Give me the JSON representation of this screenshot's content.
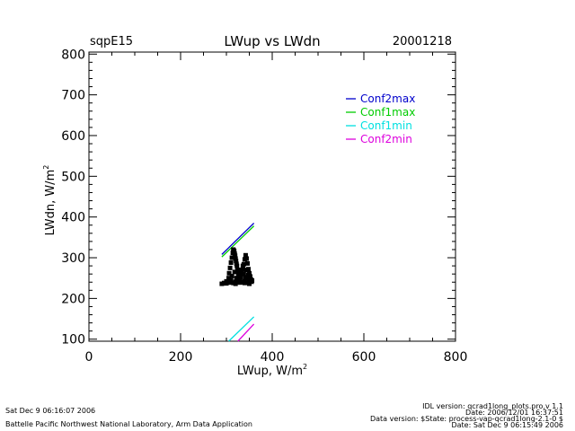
{
  "header": {
    "site": "sqpE15",
    "title": "LWup vs LWdn",
    "date": "20001218"
  },
  "footer": {
    "left_line1": "Sat Dec  9 06:16:07 2006",
    "left_line2": "Battelle Pacific Northwest National Laboratory, Arm Data Application",
    "right_line1": "IDL version: qcrad1long_plots.pro,v 1.1",
    "right_line2": "Date: 2006/12/01 16:37:51",
    "right_line3": "Data version: $State: process-vap-qcrad1long-2.1-0 $",
    "right_line4": "Date: Sat Dec  9 06:15:49 2006"
  },
  "chart_data": {
    "type": "scatter",
    "title": "LWup vs LWdn",
    "xlabel": "LWup, W/m",
    "xlabel_sup": "2",
    "ylabel": "LWdn, W/m",
    "ylabel_sup": "2",
    "xlim": [
      0,
      800
    ],
    "ylim": [
      95,
      805
    ],
    "xticks": [
      0,
      200,
      400,
      600,
      800
    ],
    "yticks": [
      100,
      200,
      300,
      400,
      500,
      600,
      700,
      800
    ],
    "minor_x_per_major": 4,
    "minor_y_per_major": 5,
    "grid": false,
    "legend_position": "top-right",
    "series": [
      {
        "name": "Conf2max",
        "color": "#0000cc",
        "type": "line",
        "points": [
          [
            290,
            308
          ],
          [
            360,
            385
          ]
        ]
      },
      {
        "name": "Conf1max",
        "color": "#00cc00",
        "type": "line",
        "points": [
          [
            290,
            302
          ],
          [
            360,
            378
          ]
        ]
      },
      {
        "name": "Conf1min",
        "color": "#00e0e0",
        "type": "line",
        "points": [
          [
            305,
            95
          ],
          [
            360,
            155
          ]
        ]
      },
      {
        "name": "Conf2min",
        "color": "#dd00dd",
        "type": "line",
        "points": [
          [
            325,
            95
          ],
          [
            360,
            137
          ]
        ]
      }
    ],
    "scatter_color": "#000000",
    "scatter_points": [
      [
        290,
        236
      ],
      [
        295,
        238
      ],
      [
        300,
        237
      ],
      [
        305,
        239
      ],
      [
        310,
        240
      ],
      [
        315,
        238
      ],
      [
        320,
        241
      ],
      [
        325,
        240
      ],
      [
        330,
        239
      ],
      [
        335,
        240
      ],
      [
        340,
        238
      ],
      [
        345,
        239
      ],
      [
        350,
        240
      ],
      [
        355,
        241
      ],
      [
        300,
        242
      ],
      [
        310,
        244
      ],
      [
        320,
        236
      ],
      [
        330,
        243
      ],
      [
        340,
        242
      ],
      [
        350,
        236
      ],
      [
        305,
        250
      ],
      [
        306,
        262
      ],
      [
        308,
        275
      ],
      [
        310,
        288
      ],
      [
        312,
        300
      ],
      [
        314,
        312
      ],
      [
        316,
        318
      ],
      [
        318,
        310
      ],
      [
        320,
        298
      ],
      [
        322,
        285
      ],
      [
        324,
        270
      ],
      [
        326,
        258
      ],
      [
        328,
        248
      ],
      [
        315,
        320
      ],
      [
        317,
        316
      ],
      [
        319,
        305
      ],
      [
        321,
        292
      ],
      [
        323,
        280
      ],
      [
        325,
        268
      ],
      [
        327,
        256
      ],
      [
        332,
        252
      ],
      [
        334,
        262
      ],
      [
        336,
        272
      ],
      [
        338,
        284
      ],
      [
        340,
        296
      ],
      [
        342,
        306
      ],
      [
        344,
        298
      ],
      [
        346,
        286
      ],
      [
        348,
        272
      ],
      [
        350,
        262
      ],
      [
        352,
        254
      ],
      [
        338,
        260
      ],
      [
        342,
        250
      ],
      [
        346,
        252
      ],
      [
        350,
        248
      ],
      [
        354,
        246
      ],
      [
        356,
        244
      ],
      [
        312,
        255
      ],
      [
        318,
        265
      ],
      [
        322,
        250
      ],
      [
        330,
        270
      ],
      [
        336,
        280
      ],
      [
        344,
        270
      ],
      [
        348,
        258
      ]
    ]
  }
}
